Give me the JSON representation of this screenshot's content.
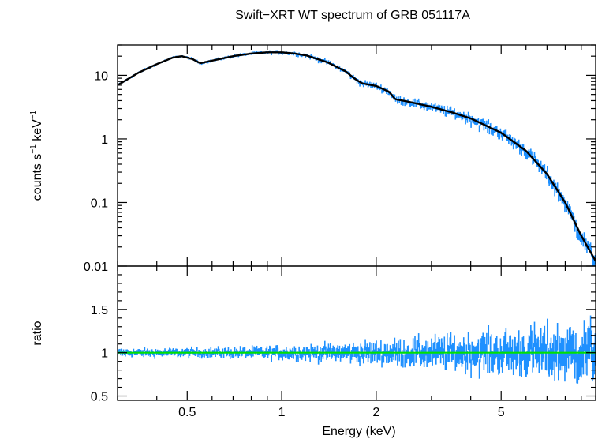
{
  "chart_data": {
    "type": "line",
    "title": "Swift−XRT WT spectrum of GRB 051117A",
    "xlabel": "Energy (keV)",
    "xscale": "log",
    "xlim": [
      0.3,
      10.0
    ],
    "xticks": [
      {
        "value": 0.5,
        "label": "0.5"
      },
      {
        "value": 1,
        "label": "1"
      },
      {
        "value": 2,
        "label": "2"
      },
      {
        "value": 5,
        "label": "5"
      }
    ],
    "panels": [
      {
        "name": "spectrum",
        "ylabel": "counts s",
        "ylabel_sup": "−1",
        "ylabel_mid": " keV",
        "ylabel_sup2": "−1",
        "yscale": "log",
        "ylim": [
          0.01,
          30
        ],
        "yticks": [
          {
            "value": 0.01,
            "label": "0.01"
          },
          {
            "value": 0.1,
            "label": "0.1"
          },
          {
            "value": 1,
            "label": "1"
          },
          {
            "value": 10,
            "label": "10"
          }
        ],
        "series": [
          {
            "role": "data",
            "color": "#1e90ff",
            "x": [
              0.3,
              0.35,
              0.4,
              0.45,
              0.48,
              0.52,
              0.55,
              0.6,
              0.7,
              0.8,
              0.9,
              1.0,
              1.1,
              1.2,
              1.4,
              1.6,
              1.7,
              1.8,
              2.0,
              2.2,
              2.3,
              2.5,
              3.0,
              3.5,
              4.0,
              5.0,
              6.0,
              7.0,
              8.0,
              9.0,
              10.0
            ],
            "y": [
              7,
              11,
              15,
              19,
              20,
              18,
              15.5,
              17,
              20,
              22,
              23,
              23,
              22,
              20.5,
              16,
              11.5,
              9,
              7.5,
              6.8,
              5.5,
              4.2,
              3.9,
              3.2,
              2.6,
              2.1,
              1.25,
              0.65,
              0.28,
              0.1,
              0.03,
              0.012
            ]
          },
          {
            "role": "model",
            "color": "#000000",
            "x": [
              0.3,
              0.35,
              0.4,
              0.45,
              0.48,
              0.52,
              0.55,
              0.6,
              0.7,
              0.8,
              0.9,
              1.0,
              1.1,
              1.2,
              1.4,
              1.6,
              1.7,
              1.8,
              2.0,
              2.2,
              2.3,
              2.5,
              3.0,
              3.5,
              4.0,
              5.0,
              6.0,
              7.0,
              8.0,
              9.0,
              10.0
            ],
            "y": [
              7,
              11,
              15,
              19,
              20,
              18,
              15.5,
              17,
              20,
              22,
              23,
              23,
              22,
              20.5,
              16,
              11.5,
              9,
              7.5,
              6.8,
              5.5,
              4.2,
              3.9,
              3.2,
              2.6,
              2.1,
              1.25,
              0.65,
              0.28,
              0.1,
              0.03,
              0.012
            ]
          }
        ]
      },
      {
        "name": "ratio",
        "ylabel": "ratio",
        "yscale": "linear",
        "ylim": [
          0.45,
          2.0
        ],
        "yticks": [
          {
            "value": 0.5,
            "label": "0.5"
          },
          {
            "value": 1,
            "label": "1"
          },
          {
            "value": 1.5,
            "label": "1.5"
          }
        ],
        "series": [
          {
            "role": "data",
            "color": "#1e90ff"
          },
          {
            "role": "reference",
            "color": "#00e000",
            "y": 1
          }
        ]
      }
    ]
  }
}
